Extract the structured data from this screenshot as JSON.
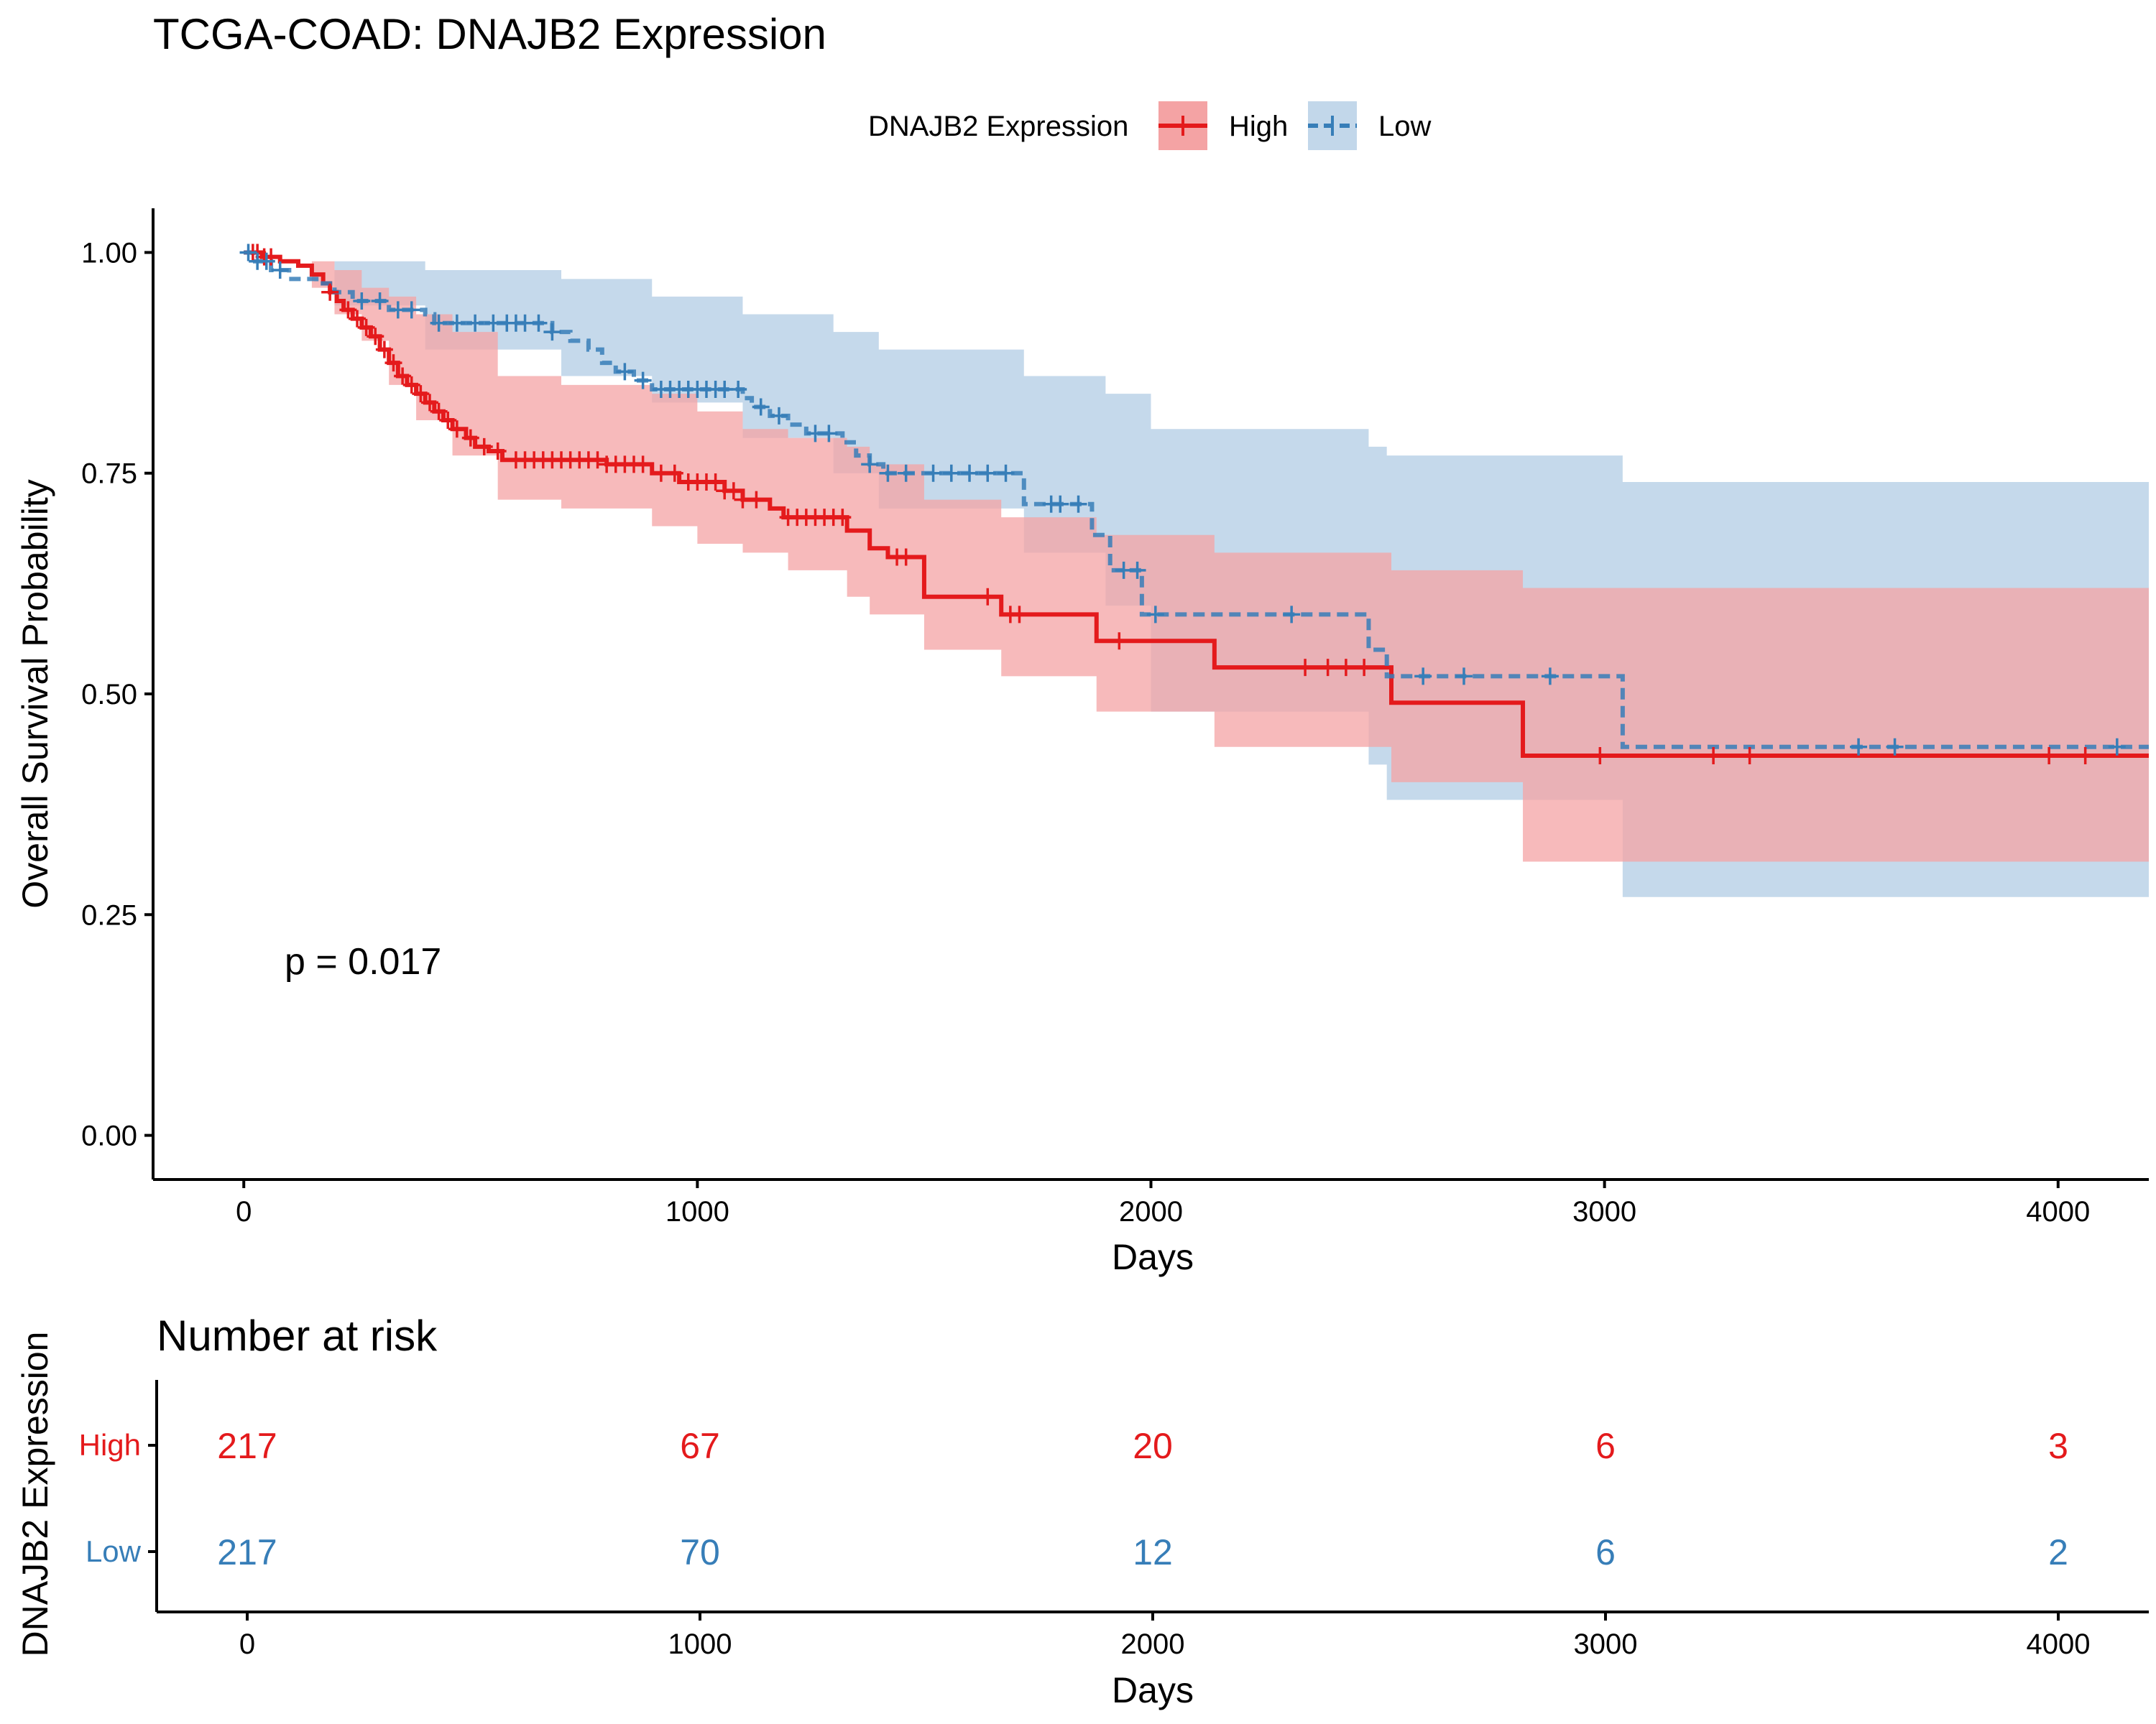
{
  "title": "TCGA-COAD: DNAJB2 Expression",
  "legend": {
    "title": "DNAJB2 Expression",
    "placement": "top",
    "items": [
      {
        "name": "High",
        "color": "#e41a1c",
        "line": "solid"
      },
      {
        "name": "Low",
        "color": "#377eb8",
        "line": "dashed"
      }
    ]
  },
  "chart_data": [
    {
      "type": "line",
      "subtype": "kaplan-meier",
      "xlabel": "Days",
      "ylabel": "Overall Survival Probability",
      "xlim": [
        -200,
        4200
      ],
      "ylim": [
        -0.05,
        1.05
      ],
      "xticks": [
        0,
        1000,
        2000,
        3000,
        4000
      ],
      "yticks": [
        0.0,
        0.25,
        0.5,
        0.75,
        1.0
      ],
      "ytick_labels": [
        "0.00",
        "0.25",
        "0.50",
        "0.75",
        "1.00"
      ],
      "grid": false,
      "annotation": "p = 0.017",
      "series": [
        {
          "name": "High",
          "color": "#e41a1c",
          "band_color": "#f4a3a4",
          "steps": [
            [
              0,
              1.0
            ],
            [
              40,
              0.995
            ],
            [
              80,
              0.99
            ],
            [
              120,
              0.985
            ],
            [
              150,
              0.975
            ],
            [
              175,
              0.965
            ],
            [
              190,
              0.955
            ],
            [
              205,
              0.945
            ],
            [
              220,
              0.935
            ],
            [
              240,
              0.925
            ],
            [
              260,
              0.915
            ],
            [
              280,
              0.905
            ],
            [
              300,
              0.89
            ],
            [
              320,
              0.875
            ],
            [
              340,
              0.86
            ],
            [
              360,
              0.85
            ],
            [
              380,
              0.84
            ],
            [
              400,
              0.83
            ],
            [
              420,
              0.82
            ],
            [
              440,
              0.81
            ],
            [
              460,
              0.8
            ],
            [
              490,
              0.79
            ],
            [
              510,
              0.78
            ],
            [
              540,
              0.775
            ],
            [
              570,
              0.765
            ],
            [
              800,
              0.76
            ],
            [
              900,
              0.75
            ],
            [
              960,
              0.74
            ],
            [
              1060,
              0.73
            ],
            [
              1100,
              0.72
            ],
            [
              1160,
              0.71
            ],
            [
              1190,
              0.7
            ],
            [
              1330,
              0.685
            ],
            [
              1380,
              0.665
            ],
            [
              1420,
              0.655
            ],
            [
              1500,
              0.61
            ],
            [
              1670,
              0.59
            ],
            [
              1880,
              0.56
            ],
            [
              2140,
              0.53
            ],
            [
              2530,
              0.49
            ],
            [
              2820,
              0.43
            ],
            [
              4200,
              0.43
            ]
          ],
          "upper": [
            [
              0,
              1.0
            ],
            [
              150,
              0.99
            ],
            [
              200,
              0.98
            ],
            [
              260,
              0.96
            ],
            [
              320,
              0.95
            ],
            [
              380,
              0.93
            ],
            [
              460,
              0.91
            ],
            [
              560,
              0.86
            ],
            [
              700,
              0.85
            ],
            [
              900,
              0.84
            ],
            [
              1000,
              0.82
            ],
            [
              1100,
              0.8
            ],
            [
              1200,
              0.79
            ],
            [
              1330,
              0.78
            ],
            [
              1380,
              0.76
            ],
            [
              1500,
              0.72
            ],
            [
              1670,
              0.7
            ],
            [
              1880,
              0.68
            ],
            [
              2140,
              0.66
            ],
            [
              2530,
              0.64
            ],
            [
              2820,
              0.62
            ],
            [
              4200,
              0.62
            ]
          ],
          "lower": [
            [
              0,
              1.0
            ],
            [
              150,
              0.96
            ],
            [
              200,
              0.93
            ],
            [
              260,
              0.9
            ],
            [
              320,
              0.85
            ],
            [
              380,
              0.81
            ],
            [
              460,
              0.77
            ],
            [
              560,
              0.72
            ],
            [
              700,
              0.71
            ],
            [
              900,
              0.69
            ],
            [
              1000,
              0.67
            ],
            [
              1100,
              0.66
            ],
            [
              1200,
              0.64
            ],
            [
              1330,
              0.61
            ],
            [
              1380,
              0.59
            ],
            [
              1500,
              0.55
            ],
            [
              1670,
              0.52
            ],
            [
              1880,
              0.48
            ],
            [
              2140,
              0.44
            ],
            [
              2530,
              0.4
            ],
            [
              2820,
              0.31
            ],
            [
              3040,
              0.31
            ],
            [
              4200,
              0.31
            ]
          ],
          "censor": [
            20,
            30,
            45,
            60,
            190,
            230,
            250,
            270,
            290,
            310,
            330,
            350,
            370,
            390,
            410,
            430,
            450,
            470,
            500,
            530,
            560,
            600,
            620,
            640,
            660,
            680,
            700,
            720,
            740,
            760,
            780,
            800,
            820,
            840,
            860,
            880,
            920,
            950,
            980,
            1000,
            1020,
            1040,
            1060,
            1080,
            1100,
            1130,
            1200,
            1220,
            1240,
            1260,
            1280,
            1300,
            1320,
            1440,
            1460,
            1640,
            1690,
            1710,
            1930,
            2340,
            2390,
            2430,
            2470,
            2990,
            3240,
            3320,
            3980,
            4060
          ]
        },
        {
          "name": "Low",
          "color": "#377eb8",
          "band_color": "#c2d7ea",
          "steps": [
            [
              0,
              1.0
            ],
            [
              20,
              0.99
            ],
            [
              60,
              0.98
            ],
            [
              100,
              0.97
            ],
            [
              160,
              0.965
            ],
            [
              200,
              0.955
            ],
            [
              240,
              0.945
            ],
            [
              320,
              0.935
            ],
            [
              400,
              0.93
            ],
            [
              420,
              0.92
            ],
            [
              680,
              0.91
            ],
            [
              720,
              0.9
            ],
            [
              760,
              0.89
            ],
            [
              790,
              0.875
            ],
            [
              820,
              0.865
            ],
            [
              860,
              0.855
            ],
            [
              900,
              0.845
            ],
            [
              1100,
              0.835
            ],
            [
              1120,
              0.825
            ],
            [
              1160,
              0.815
            ],
            [
              1200,
              0.805
            ],
            [
              1240,
              0.795
            ],
            [
              1320,
              0.785
            ],
            [
              1350,
              0.77
            ],
            [
              1380,
              0.76
            ],
            [
              1410,
              0.75
            ],
            [
              1720,
              0.715
            ],
            [
              1870,
              0.68
            ],
            [
              1910,
              0.64
            ],
            [
              1980,
              0.59
            ],
            [
              2480,
              0.55
            ],
            [
              2520,
              0.52
            ],
            [
              3040,
              0.44
            ],
            [
              4200,
              0.44
            ]
          ],
          "upper": [
            [
              0,
              1.0
            ],
            [
              200,
              0.99
            ],
            [
              400,
              0.98
            ],
            [
              700,
              0.97
            ],
            [
              900,
              0.95
            ],
            [
              1100,
              0.93
            ],
            [
              1300,
              0.91
            ],
            [
              1400,
              0.89
            ],
            [
              1720,
              0.86
            ],
            [
              1900,
              0.84
            ],
            [
              2000,
              0.8
            ],
            [
              2480,
              0.78
            ],
            [
              2520,
              0.77
            ],
            [
              3040,
              0.74
            ],
            [
              4200,
              0.74
            ]
          ],
          "lower": [
            [
              0,
              1.0
            ],
            [
              200,
              0.94
            ],
            [
              400,
              0.89
            ],
            [
              700,
              0.86
            ],
            [
              900,
              0.83
            ],
            [
              1100,
              0.79
            ],
            [
              1300,
              0.75
            ],
            [
              1400,
              0.71
            ],
            [
              1720,
              0.66
            ],
            [
              1900,
              0.6
            ],
            [
              2000,
              0.48
            ],
            [
              2480,
              0.42
            ],
            [
              2520,
              0.38
            ],
            [
              3040,
              0.27
            ],
            [
              4200,
              0.27
            ]
          ],
          "censor": [
            10,
            30,
            50,
            80,
            260,
            300,
            340,
            370,
            430,
            470,
            510,
            550,
            580,
            600,
            620,
            650,
            680,
            840,
            880,
            920,
            940,
            960,
            980,
            1000,
            1020,
            1040,
            1060,
            1090,
            1140,
            1180,
            1260,
            1290,
            1380,
            1420,
            1460,
            1520,
            1560,
            1600,
            1640,
            1680,
            1780,
            1800,
            1840,
            1940,
            1970,
            2010,
            2310,
            2600,
            2690,
            2880,
            3560,
            3640,
            4130
          ]
        }
      ]
    },
    {
      "type": "table",
      "title": "Number at risk",
      "xlabel": "Days",
      "ylabel": "DNAJB2 Expression",
      "xlim": [
        -200,
        4200
      ],
      "xticks": [
        0,
        1000,
        2000,
        3000,
        4000
      ],
      "x": [
        0,
        1000,
        2000,
        3000,
        4000
      ],
      "rows": [
        {
          "name": "High",
          "color": "#e41a1c",
          "values": [
            "217",
            "67",
            "20",
            "6",
            "3"
          ]
        },
        {
          "name": "Low",
          "color": "#377eb8",
          "values": [
            "217",
            "70",
            "12",
            "6",
            "2"
          ]
        }
      ]
    }
  ]
}
